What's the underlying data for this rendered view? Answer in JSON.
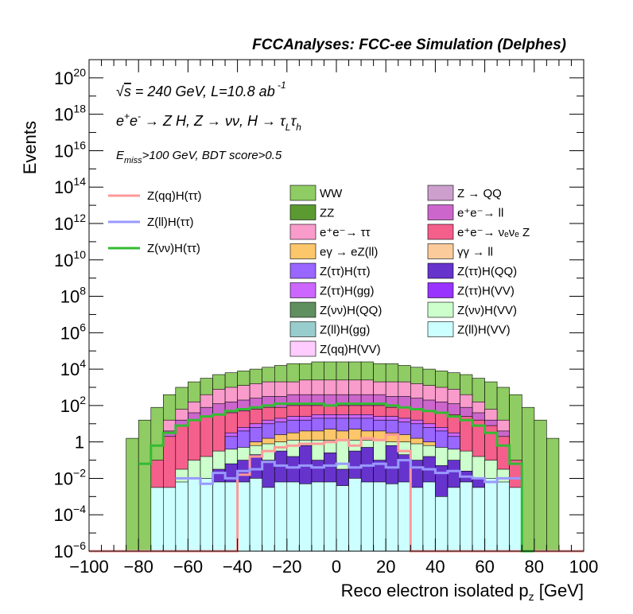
{
  "chart_data": {
    "type": "area",
    "title": "FCCAnalyses: FCC-ee Simulation (Delphes)",
    "xlabel": "Reco electron isolated p_z [GeV]",
    "ylabel": "Events",
    "xlim": [
      -100,
      100
    ],
    "ylim_log10": [
      -6,
      21
    ],
    "y_scale": "log",
    "x_ticks": [
      "−100",
      "−80",
      "−60",
      "−40",
      "−20",
      "0",
      "20",
      "40",
      "60",
      "80",
      "100"
    ],
    "y_ticks": [
      {
        "exp": 20,
        "label": "10",
        "sup": "20"
      },
      {
        "exp": 18,
        "label": "10",
        "sup": "18"
      },
      {
        "exp": 16,
        "label": "10",
        "sup": "16"
      },
      {
        "exp": 14,
        "label": "10",
        "sup": "14"
      },
      {
        "exp": 12,
        "label": "10",
        "sup": "12"
      },
      {
        "exp": 10,
        "label": "10",
        "sup": "10"
      },
      {
        "exp": 8,
        "label": "10",
        "sup": "8"
      },
      {
        "exp": 6,
        "label": "10",
        "sup": "6"
      },
      {
        "exp": 4,
        "label": "10",
        "sup": "4"
      },
      {
        "exp": 2,
        "label": "10",
        "sup": "2"
      },
      {
        "exp": 0,
        "label": "1",
        "sup": ""
      },
      {
        "exp": -2,
        "label": "10",
        "sup": "−2"
      },
      {
        "exp": -4,
        "label": "10",
        "sup": "−4"
      },
      {
        "exp": -6,
        "label": "10",
        "sup": "−6"
      }
    ],
    "annotations": {
      "line1": "√s = 240 GeV, L=10.8 ab⁻¹",
      "line2": "e⁺e⁻ → Z H, Z → νν, H → τ_L τ_h",
      "line3": "E_miss>100 GeV, BDT score>0.5"
    },
    "bin_width": 5,
    "stack_legend": [
      {
        "name": "WW",
        "color": "#8fcc63"
      },
      {
        "name": "Z → QQ",
        "color": "#cc9fcc"
      },
      {
        "name": "ZZ",
        "color": "#5a9a30"
      },
      {
        "name": "e⁺e⁻→ ll",
        "color": "#cc66cc"
      },
      {
        "name": "e⁺e⁻→ ττ",
        "color": "#f99ccb"
      },
      {
        "name": "e⁺e⁻→ νₑνₑ Z",
        "color": "#f55f8c"
      },
      {
        "name": "eγ → eZ(ll)",
        "color": "#fcc66a"
      },
      {
        "name": "γγ → ll",
        "color": "#fccb9b"
      },
      {
        "name": "Z(ττ)H(ττ)",
        "color": "#9966ff"
      },
      {
        "name": "Z(ττ)H(QQ)",
        "color": "#6633cc"
      },
      {
        "name": "Z(ττ)H(gg)",
        "color": "#cc66ff"
      },
      {
        "name": "Z(ττ)H(VV)",
        "color": "#9933ff"
      },
      {
        "name": "Z(νν)H(QQ)",
        "color": "#5f8f5f"
      },
      {
        "name": "Z(νν)H(VV)",
        "color": "#ccffcc"
      },
      {
        "name": "Z(ll)H(gg)",
        "color": "#99cccc"
      },
      {
        "name": "Z(ll)H(VV)",
        "color": "#ccffff"
      },
      {
        "name": "Z(qq)H(VV)",
        "color": "#ffccff"
      }
    ],
    "signal_legend": [
      {
        "name": "Z(qq)H(ττ)",
        "color": "#ff9999"
      },
      {
        "name": "Z(ll)H(ττ)",
        "color": "#9999ff"
      },
      {
        "name": "Z(νν)H(ττ)",
        "color": "#33bb33"
      }
    ],
    "stack_layers_log10": [
      {
        "name": "Z(ll)H(VV)",
        "color": "#ccffff",
        "x0": [
          -75,
          -70,
          -65,
          -60,
          -55,
          -50,
          -45,
          -40,
          -35,
          -30,
          -25,
          -20,
          -15,
          -10,
          -5,
          0,
          5,
          10,
          15,
          20,
          25,
          30,
          35,
          40,
          45,
          50,
          55,
          60,
          65,
          70
        ],
        "top": [
          -2.5,
          -2.5,
          -2.2,
          -2,
          -2,
          -2.2,
          -2.2,
          -2.2,
          -2,
          -2.5,
          -2.2,
          -2.2,
          -2.3,
          -2.2,
          -2.2,
          -2.4,
          -2,
          -2.2,
          -2.2,
          -2.3,
          -2.2,
          -2.5,
          -2.2,
          -3,
          -2.5,
          -2.2,
          -2.5,
          -2,
          -2.2,
          -2.5
        ]
      },
      {
        "name": "Z(ττ)H(QQ)",
        "color": "#6633cc",
        "x0": [
          -55,
          -50,
          -45,
          -40,
          -35,
          -30,
          -25,
          -20,
          -15,
          -10,
          -5,
          0,
          5,
          10,
          15,
          20,
          25,
          30,
          35,
          40,
          45,
          50,
          55
        ],
        "top": [
          -2,
          -1.5,
          -1.2,
          -1,
          -0.7,
          -1,
          -0.5,
          -0.8,
          -0.2,
          -1,
          -0.6,
          -1.5,
          -0.5,
          -0.3,
          -1,
          -0.2,
          -0.7,
          -1,
          -0.8,
          -1.3,
          -1,
          -1.6,
          -2
        ]
      },
      {
        "name": "Z(νν)H(VV)",
        "color": "#ccffcc",
        "x0": [
          -65,
          -60,
          -55,
          -50,
          -45,
          -40,
          -35,
          -30,
          -25,
          -20,
          -15,
          -10,
          -5,
          0,
          5,
          10,
          15,
          20,
          25,
          30,
          35,
          40,
          45,
          50,
          55,
          60,
          65
        ],
        "top": [
          -1.5,
          -1,
          -0.8,
          -0.5,
          -0.4,
          -0.3,
          -0.2,
          -0.1,
          0,
          0.1,
          0.1,
          0.1,
          0.1,
          0.1,
          0.1,
          0.1,
          0.1,
          0,
          0,
          -0.1,
          -0.2,
          -0.3,
          -0.4,
          -0.5,
          -0.8,
          -1,
          -1.5
        ]
      },
      {
        "name": "eγ → eZ(ll)",
        "color": "#fcc66a",
        "x0": [
          -40,
          -35,
          -30,
          -25,
          -20,
          -15,
          -10,
          -5,
          0,
          5,
          10,
          15,
          20,
          25,
          30,
          35,
          40
        ],
        "top": [
          -0.5,
          0,
          0.2,
          0.4,
          0.5,
          0.6,
          0.6,
          0.7,
          0.6,
          0.7,
          0.6,
          0.6,
          0.5,
          0.4,
          0.2,
          0,
          -0.5
        ]
      },
      {
        "name": "Z(ττ)H(ττ)",
        "color": "#9966ff",
        "x0": [
          -45,
          -40,
          -35,
          -30,
          -25,
          -20,
          -15,
          -10,
          -5,
          0,
          5,
          10,
          15,
          20,
          25,
          30,
          35,
          40,
          45
        ],
        "top": [
          0.3,
          0.6,
          0.8,
          1,
          1.1,
          1.2,
          1.2,
          1.3,
          1.3,
          1.3,
          1.3,
          1.3,
          1.2,
          1.2,
          1.1,
          1,
          0.8,
          0.6,
          0.3
        ]
      },
      {
        "name": "Z(ττ)H(gg)",
        "color": "#cc66ff",
        "x0": [
          -45,
          -40,
          -35,
          -30,
          -25,
          -20,
          -15,
          -10,
          -5,
          0,
          5,
          10,
          15,
          20,
          25,
          30,
          35,
          40,
          45
        ],
        "top": [
          0.5,
          0.8,
          1,
          1.2,
          1.3,
          1.4,
          1.4,
          1.5,
          1.5,
          1.5,
          1.5,
          1.5,
          1.4,
          1.4,
          1.3,
          1.2,
          1,
          0.8,
          0.5
        ]
      },
      {
        "name": "e⁺e⁻→ νₑνₑ Z",
        "color": "#f55f8c",
        "x0": [
          -75,
          -70,
          -65,
          -60,
          -55,
          -50,
          -45,
          -40,
          -35,
          -30,
          -25,
          -20,
          -15,
          -10,
          -5,
          0,
          5,
          10,
          15,
          20,
          25,
          30,
          35,
          40,
          45,
          50,
          55,
          60,
          65,
          70
        ],
        "top": [
          -1,
          0.3,
          0.9,
          1.2,
          1.4,
          1.5,
          1.6,
          1.7,
          1.8,
          1.9,
          1.9,
          2,
          2,
          2,
          2,
          2,
          2,
          2,
          2,
          1.9,
          1.9,
          1.8,
          1.7,
          1.6,
          1.5,
          1.4,
          1.2,
          0.9,
          0.3,
          -1
        ]
      },
      {
        "name": "e⁺e⁻→ ll",
        "color": "#cc66cc",
        "x0": [
          -70,
          -65,
          -60,
          -55,
          -50,
          -45,
          -40,
          -35,
          -30,
          -25,
          -20,
          -15,
          -10,
          -5,
          0,
          5,
          10,
          15,
          20,
          25,
          30,
          35,
          40,
          45,
          50,
          55,
          60,
          65
        ],
        "top": [
          0.6,
          1.2,
          1.6,
          1.9,
          2.1,
          2.2,
          2.3,
          2.4,
          2.5,
          2.5,
          2.6,
          2.6,
          2.6,
          2.6,
          2.6,
          2.6,
          2.6,
          2.6,
          2.5,
          2.5,
          2.4,
          2.3,
          2.2,
          2.1,
          1.9,
          1.6,
          1.2,
          0.6
        ]
      },
      {
        "name": "e⁺e⁻→ ττ",
        "color": "#f99ccb",
        "x0": [
          -70,
          -65,
          -60,
          -55,
          -50,
          -45,
          -40,
          -35,
          -30,
          -25,
          -20,
          -15,
          -10,
          -5,
          0,
          5,
          10,
          15,
          20,
          25,
          30,
          35,
          40,
          45,
          50,
          55,
          60,
          65
        ],
        "top": [
          1.2,
          1.8,
          2.2,
          2.6,
          2.9,
          3,
          3.1,
          3.2,
          3.3,
          3.3,
          3.3,
          3.4,
          3.4,
          3.4,
          3.4,
          3.4,
          3.4,
          3.3,
          3.3,
          3.3,
          3.2,
          3.1,
          3,
          2.9,
          2.6,
          2.2,
          1.8,
          1.2
        ]
      },
      {
        "name": "WW",
        "color": "#8fcc63",
        "x0": [
          -90,
          -85,
          -80,
          -75,
          -70,
          -65,
          -60,
          -55,
          -50,
          -45,
          -40,
          -35,
          -30,
          -25,
          -20,
          -15,
          -10,
          -5,
          0,
          5,
          10,
          15,
          20,
          25,
          30,
          35,
          40,
          45,
          50,
          55,
          60,
          65,
          70,
          75,
          80,
          85,
          90,
          95
        ],
        "top": [
          -6,
          0.2,
          1.2,
          1.9,
          2.6,
          3,
          3.3,
          3.5,
          3.7,
          3.8,
          3.9,
          4,
          4.1,
          4.2,
          4.3,
          4.3,
          4.4,
          4.4,
          4.4,
          4.4,
          4.4,
          4.3,
          4.3,
          4.2,
          4.1,
          4,
          3.9,
          3.8,
          3.7,
          3.5,
          3.3,
          3,
          2.6,
          1.9,
          1.2,
          0.2,
          -6,
          -6
        ]
      }
    ],
    "signal_lines_log10": [
      {
        "name": "Z(qq)H(ττ)",
        "color": "#ff9999",
        "x": [
          -100,
          -40,
          -40,
          -35,
          -35,
          -30,
          -30,
          -25,
          -25,
          -20,
          -20,
          -15,
          -15,
          -10,
          -10,
          -5,
          -5,
          0,
          0,
          5,
          5,
          10,
          10,
          15,
          15,
          20,
          20,
          25,
          25,
          30,
          30,
          35,
          35,
          100
        ],
        "y": [
          -6,
          -6,
          -1.8,
          -1.8,
          -0.8,
          -0.8,
          -0.5,
          -0.5,
          -0.3,
          -0.3,
          -0.2,
          -0.2,
          -0.1,
          -0.1,
          -0.1,
          -0.1,
          0,
          0,
          0.1,
          0.1,
          -0.2,
          -0.2,
          0.2,
          0.2,
          0.1,
          0.1,
          0.4,
          0.4,
          -0.5,
          -0.5,
          -6,
          -6,
          -6,
          -6
        ]
      },
      {
        "name": "Z(ll)H(ττ)",
        "color": "#9999ff",
        "x": [
          -65,
          -60,
          -60,
          -55,
          -55,
          -50,
          -50,
          -45,
          -45,
          -40,
          -40,
          -35,
          -35,
          -30,
          -30,
          -25,
          -25,
          -20,
          -20,
          -15,
          -15,
          -10,
          -10,
          -5,
          -5,
          0,
          0,
          5,
          5,
          10,
          10,
          15,
          15,
          20,
          20,
          25,
          25,
          30,
          30,
          35,
          35,
          40,
          40,
          45,
          45,
          50,
          50,
          55,
          55,
          60,
          60,
          65,
          65,
          70,
          70,
          75
        ],
        "y": [
          -2,
          -2,
          -2,
          -2,
          -2.3,
          -2.3,
          -1.7,
          -1.7,
          -2,
          -2,
          -1.6,
          -1.6,
          -1.5,
          -1.5,
          -1.1,
          -1.1,
          -1.3,
          -1.3,
          -1.4,
          -1.4,
          -1.3,
          -1.3,
          -1.4,
          -1.4,
          -1.3,
          -1.3,
          -1.2,
          -1.2,
          -1.4,
          -1.4,
          -1.3,
          -1.3,
          -1.2,
          -1.2,
          -1.4,
          -1.4,
          -1,
          -1,
          -1.4,
          -1.4,
          -1.5,
          -1.5,
          -1.7,
          -1.7,
          -1.6,
          -1.6,
          -1.9,
          -1.9,
          -2,
          -2,
          -2.2,
          -2.2,
          -2,
          -2,
          -2,
          -2
        ]
      },
      {
        "name": "Z(νν)H(ττ)",
        "color": "#33bb33",
        "x": [
          -80,
          -75,
          -75,
          -70,
          -70,
          -65,
          -65,
          -60,
          -60,
          -55,
          -55,
          -50,
          -50,
          -45,
          -45,
          -40,
          -40,
          -35,
          -35,
          -30,
          -30,
          -25,
          -25,
          -20,
          -20,
          -15,
          -15,
          -10,
          -10,
          -5,
          -5,
          0,
          0,
          5,
          5,
          10,
          10,
          15,
          15,
          20,
          20,
          25,
          25,
          30,
          30,
          35,
          35,
          40,
          40,
          45,
          45,
          50,
          50,
          55,
          55,
          60,
          60,
          65,
          65,
          70,
          70,
          75,
          75,
          80
        ],
        "y": [
          -1.2,
          -1.2,
          -0.2,
          -0.2,
          0.5,
          0.5,
          0.9,
          0.9,
          1.2,
          1.2,
          1.4,
          1.4,
          1.5,
          1.5,
          1.7,
          1.7,
          1.8,
          1.8,
          1.9,
          1.9,
          2,
          2,
          2.1,
          2.1,
          2.1,
          2.1,
          2.1,
          2.1,
          2.1,
          2.1,
          2,
          2,
          2.1,
          2.1,
          2.1,
          2.1,
          2.1,
          2.1,
          2.1,
          2.1,
          2,
          2,
          1.9,
          1.9,
          1.8,
          1.8,
          1.7,
          1.7,
          1.6,
          1.6,
          1.4,
          1.4,
          1.2,
          1.2,
          0.9,
          0.9,
          0.5,
          0.5,
          -0.2,
          -0.2,
          -1.2,
          -1.2,
          -6,
          -6
        ]
      }
    ]
  }
}
